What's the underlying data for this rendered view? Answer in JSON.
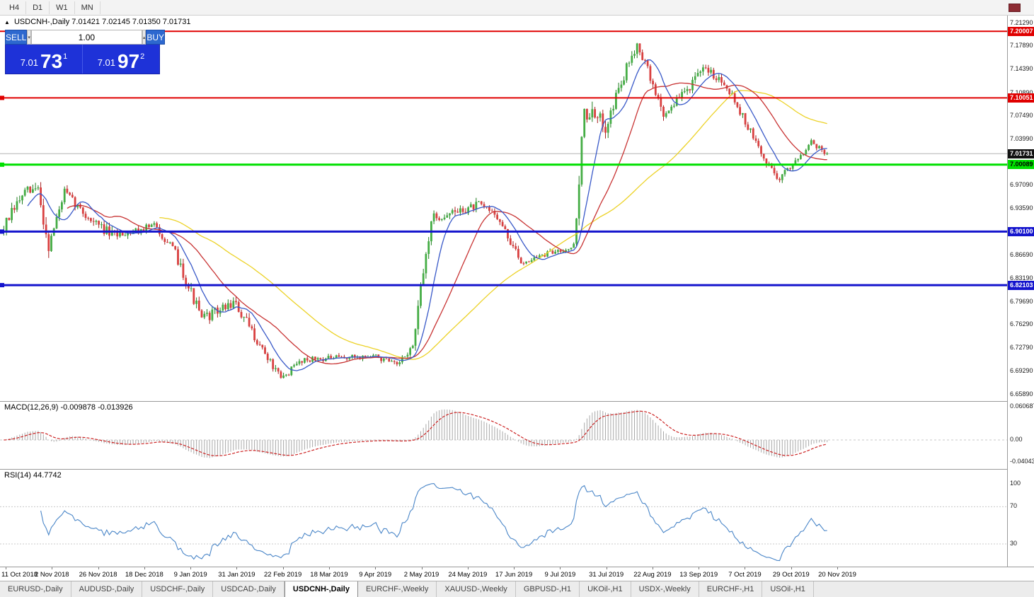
{
  "toolbar": {
    "timeframes": [
      "H4",
      "D1",
      "W1",
      "MN"
    ]
  },
  "chart": {
    "collapse_icon": "▲",
    "symbol": "USDCNH-,Daily",
    "ohlc": "7.01421 7.02145 7.01350 7.01731"
  },
  "trade_panel": {
    "sell_label": "SELL",
    "buy_label": "BUY",
    "volume": "1.00",
    "volume_down_icon": "▾",
    "volume_up_icon": "▴",
    "sell_price": {
      "base": "7.01",
      "big": "73",
      "sup": "1"
    },
    "buy_price": {
      "base": "7.01",
      "big": "97",
      "sup": "2"
    }
  },
  "price_axis": {
    "ticks": [
      "7.21290",
      "7.17890",
      "7.14390",
      "7.10890",
      "7.07490",
      "7.03990",
      "6.97090",
      "6.93590",
      "6.86690",
      "6.83190",
      "6.79690",
      "6.76290",
      "6.72790",
      "6.69290",
      "6.65890"
    ],
    "badges": [
      {
        "label": "7.20007",
        "bg": "#e00000",
        "fg": "#ffffff"
      },
      {
        "label": "7.10051",
        "bg": "#e00000",
        "fg": "#ffffff"
      },
      {
        "label": "7.01731",
        "bg": "#111111",
        "fg": "#ffffff"
      },
      {
        "label": "7.00089",
        "bg": "#00e000",
        "fg": "#000000"
      },
      {
        "label": "6.90100",
        "bg": "#1414cd",
        "fg": "#ffffff"
      },
      {
        "label": "6.82103",
        "bg": "#1414cd",
        "fg": "#ffffff"
      }
    ]
  },
  "indicators": {
    "macd": {
      "label": "MACD(12,26,9) -0.009878 -0.013926",
      "axis_ticks": [
        "0.060687",
        "0.00",
        "-0.040432"
      ]
    },
    "rsi": {
      "label": "RSI(14) 44.7742",
      "axis_ticks": [
        "100",
        "70",
        "30"
      ]
    }
  },
  "date_axis": [
    "11 Oct 2018",
    "2 Nov 2018",
    "26 Nov 2018",
    "18 Dec 2018",
    "9 Jan 2019",
    "31 Jan 2019",
    "22 Feb 2019",
    "18 Mar 2019",
    "9 Apr 2019",
    "2 May 2019",
    "24 May 2019",
    "17 Jun 2019",
    "9 Jul 2019",
    "31 Jul 2019",
    "22 Aug 2019",
    "13 Sep 2019",
    "7 Oct 2019",
    "29 Oct 2019",
    "20 Nov 2019"
  ],
  "tabs": {
    "active": "USDCNH-,Daily",
    "items": [
      "EURUSD-,Daily",
      "AUDUSD-,Daily",
      "USDCHF-,Daily",
      "USDCAD-,Daily",
      "USDCNH-,Daily",
      "EURCHF-,Weekly",
      "XAUUSD-,Weekly",
      "GBPUSD-,H1",
      "UKOil-,H1",
      "USDX-,Weekly",
      "EURCHF-,H1",
      "USOil-,H1"
    ],
    "scroll_marker": ""
  },
  "chart_data": {
    "type": "candlestick",
    "symbol": "USDCNH",
    "timeframe": "Daily",
    "x_range": [
      "11 Oct 2018",
      "20 Nov 2019"
    ],
    "price_range": [
      6.6589,
      7.2129
    ],
    "last_close": 7.01731,
    "horizontal_lines": [
      {
        "price": 7.20007,
        "color": "#e00000",
        "width": 2,
        "handle": false
      },
      {
        "price": 7.10051,
        "color": "#e00000",
        "width": 2,
        "handle": true
      },
      {
        "price": 7.00089,
        "color": "#00e000",
        "width": 3,
        "handle": true
      },
      {
        "price": 6.901,
        "color": "#1414cd",
        "width": 3,
        "handle": true
      },
      {
        "price": 6.82103,
        "color": "#1414cd",
        "width": 3,
        "handle": true
      }
    ],
    "moving_averages": [
      {
        "period": 10,
        "color": "#3959c8"
      },
      {
        "period": 25,
        "color": "#c83333"
      },
      {
        "period": 60,
        "color": "#ecd227"
      }
    ],
    "macd_params": {
      "fast": 12,
      "slow": 26,
      "signal": 9,
      "axis_max": 0.060687,
      "axis_min": -0.040432
    },
    "rsi_params": {
      "period": 14,
      "levels": [
        70,
        30
      ],
      "current": 44.7742
    },
    "seed": 7,
    "segments": [
      {
        "n": 8,
        "a": 6.9,
        "b": 6.955,
        "v": 0.018
      },
      {
        "n": 6,
        "a": 6.955,
        "b": 6.965,
        "v": 0.02
      },
      {
        "n": 4,
        "a": 6.96,
        "b": 6.88,
        "v": 0.025
      },
      {
        "n": 6,
        "a": 6.88,
        "b": 6.96,
        "v": 0.015
      },
      {
        "n": 8,
        "a": 6.96,
        "b": 6.925,
        "v": 0.012
      },
      {
        "n": 10,
        "a": 6.925,
        "b": 6.895,
        "v": 0.015
      },
      {
        "n": 16,
        "a": 6.895,
        "b": 6.91,
        "v": 0.012
      },
      {
        "n": 8,
        "a": 6.91,
        "b": 6.87,
        "v": 0.01
      },
      {
        "n": 10,
        "a": 6.87,
        "b": 6.77,
        "v": 0.018
      },
      {
        "n": 12,
        "a": 6.77,
        "b": 6.795,
        "v": 0.015
      },
      {
        "n": 8,
        "a": 6.795,
        "b": 6.745,
        "v": 0.018
      },
      {
        "n": 10,
        "a": 6.745,
        "b": 6.68,
        "v": 0.012
      },
      {
        "n": 8,
        "a": 6.68,
        "b": 6.71,
        "v": 0.01
      },
      {
        "n": 28,
        "a": 6.71,
        "b": 6.715,
        "v": 0.008
      },
      {
        "n": 8,
        "a": 6.715,
        "b": 6.7,
        "v": 0.009
      },
      {
        "n": 6,
        "a": 6.7,
        "b": 6.73,
        "v": 0.008
      },
      {
        "n": 7,
        "a": 6.73,
        "b": 6.92,
        "v": 0.02
      },
      {
        "n": 18,
        "a": 6.92,
        "b": 6.94,
        "v": 0.014
      },
      {
        "n": 6,
        "a": 6.94,
        "b": 6.93,
        "v": 0.01
      },
      {
        "n": 10,
        "a": 6.93,
        "b": 6.855,
        "v": 0.012
      },
      {
        "n": 20,
        "a": 6.855,
        "b": 6.88,
        "v": 0.008
      },
      {
        "n": 4,
        "a": 6.88,
        "b": 7.08,
        "v": 0.035
      },
      {
        "n": 8,
        "a": 7.08,
        "b": 7.06,
        "v": 0.025
      },
      {
        "n": 12,
        "a": 7.06,
        "b": 7.185,
        "v": 0.018
      },
      {
        "n": 10,
        "a": 7.185,
        "b": 7.075,
        "v": 0.016
      },
      {
        "n": 16,
        "a": 7.075,
        "b": 7.145,
        "v": 0.014
      },
      {
        "n": 8,
        "a": 7.145,
        "b": 7.12,
        "v": 0.012
      },
      {
        "n": 14,
        "a": 7.12,
        "b": 7.01,
        "v": 0.012
      },
      {
        "n": 6,
        "a": 7.01,
        "b": 6.98,
        "v": 0.014
      },
      {
        "n": 12,
        "a": 6.98,
        "b": 7.035,
        "v": 0.01
      },
      {
        "n": 6,
        "a": 7.035,
        "b": 7.017,
        "v": 0.008
      }
    ],
    "colors": {
      "bull_fill": "#45ad45",
      "bull_stroke": "#1e7d1e",
      "bear_fill": "#d94040",
      "bear_stroke": "#a61f1f",
      "macd_hist": "#a8a8a8",
      "macd_signal": "#cc2222",
      "rsi_line": "#4a86c8",
      "price_line": "#b4b4b4",
      "level_line": "#c8c8c8"
    }
  }
}
